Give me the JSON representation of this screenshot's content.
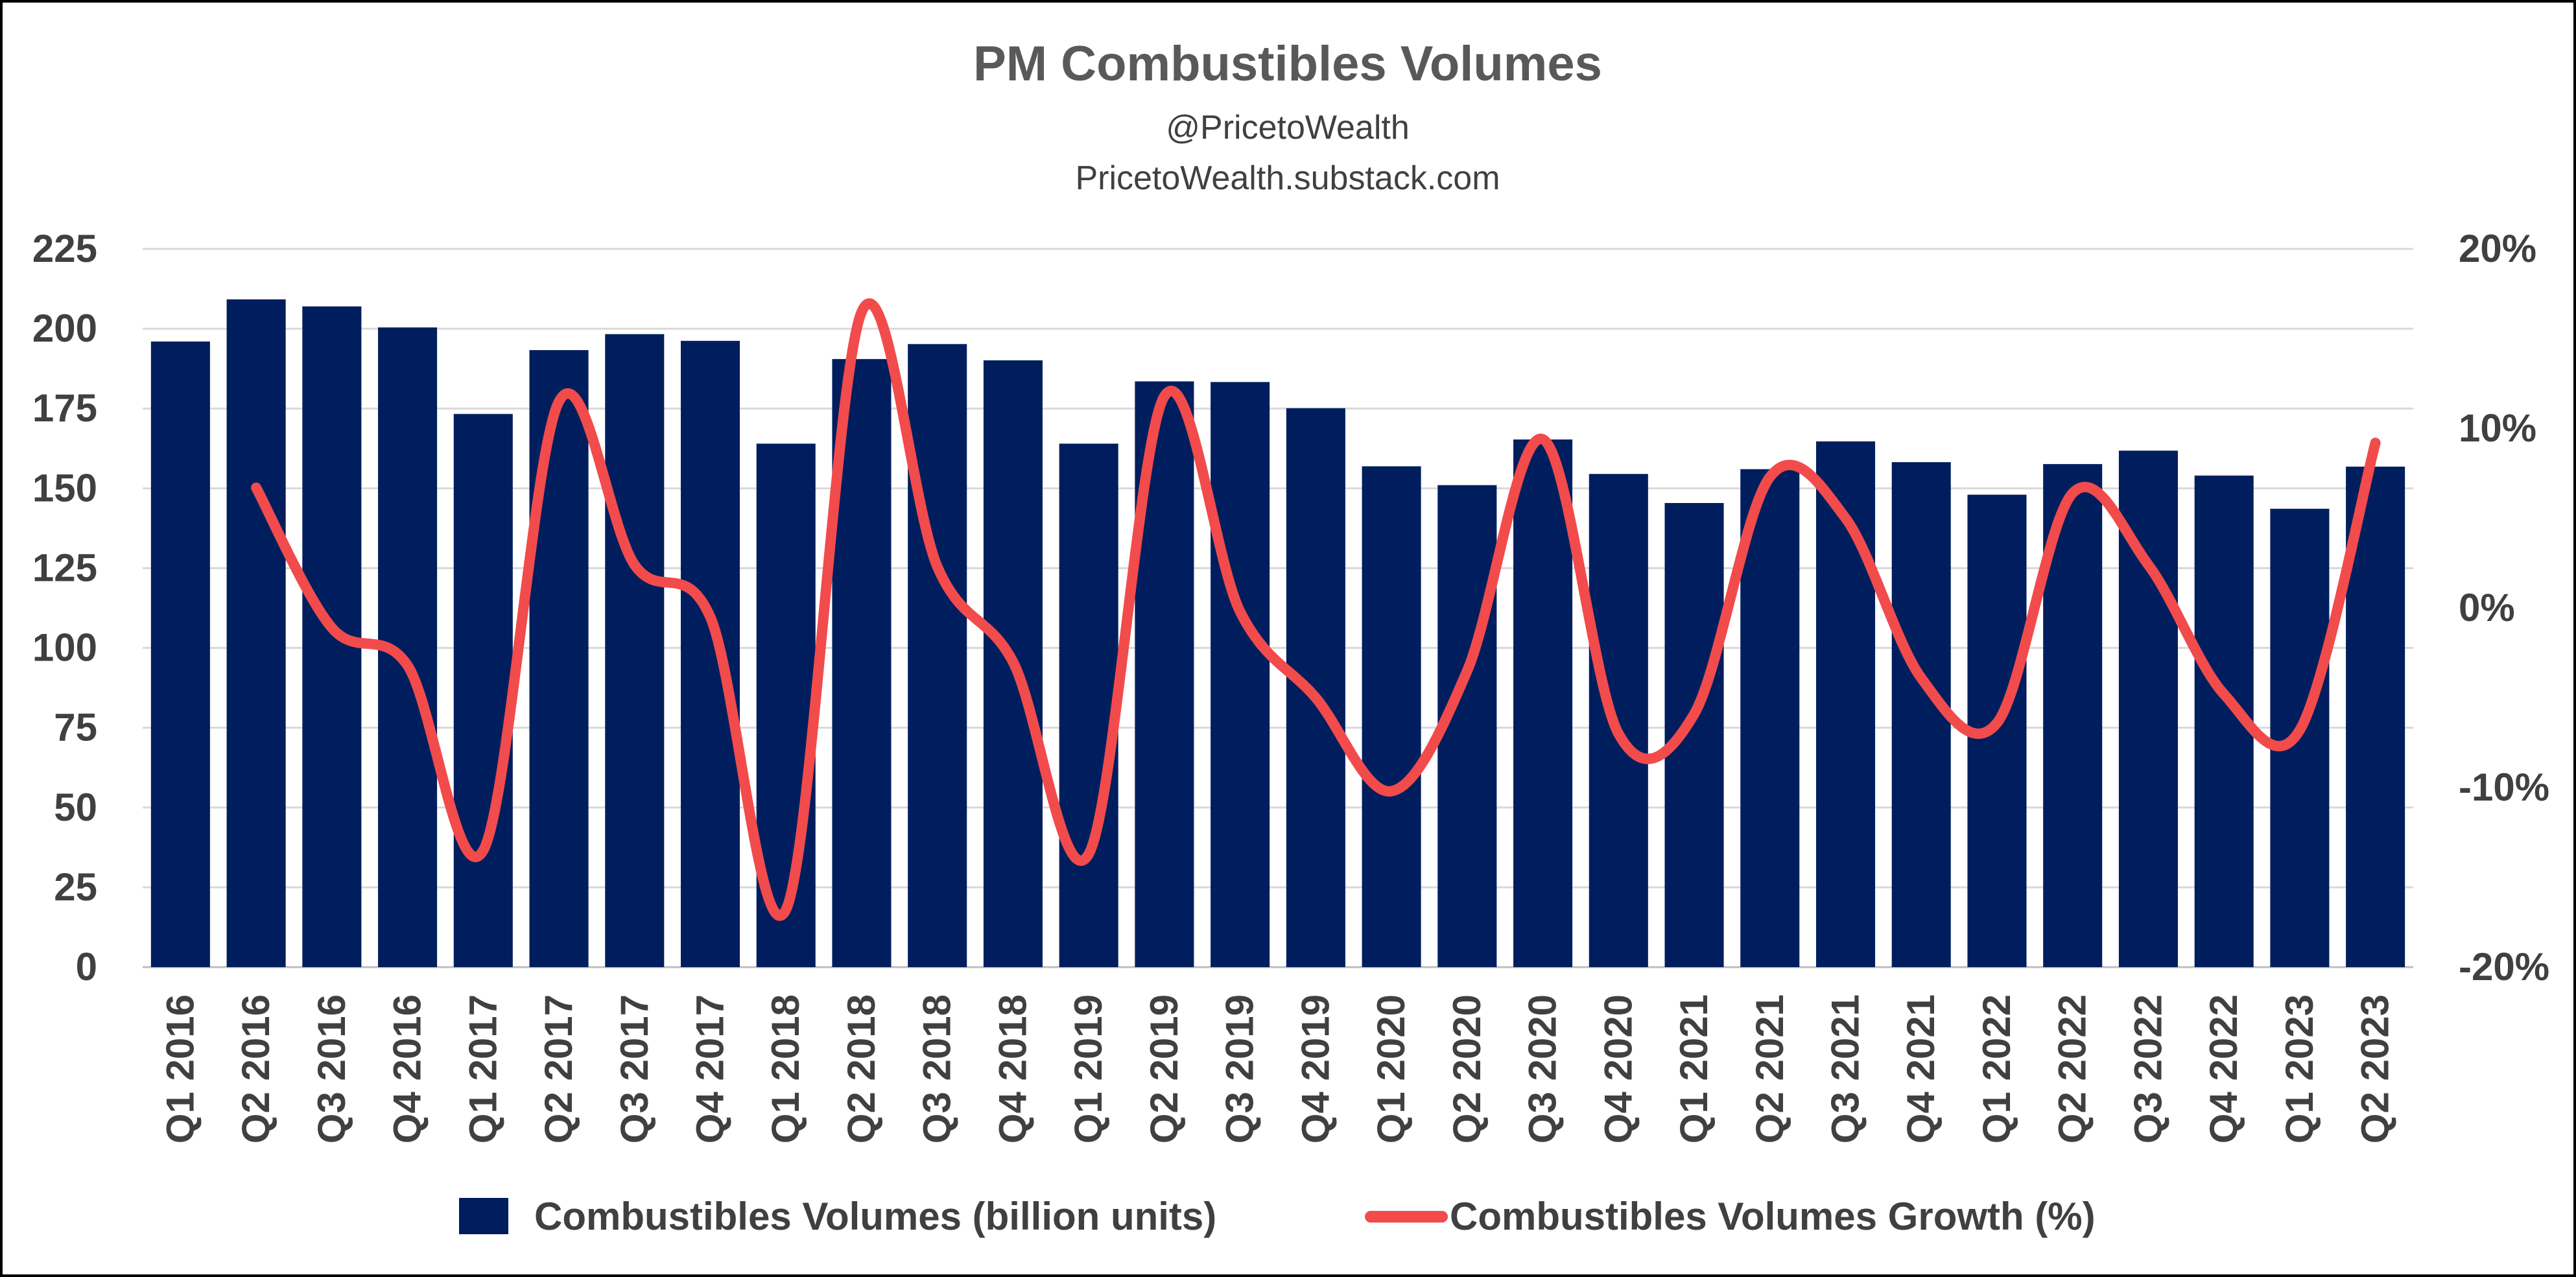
{
  "chart_data": {
    "type": "bar",
    "title": "PM Combustibles Volumes",
    "subtitles": [
      "@PricetoWealth",
      "PricetoWealth.substack.com"
    ],
    "categories": [
      "Q1 2016",
      "Q2 2016",
      "Q3 2016",
      "Q4 2016",
      "Q1 2017",
      "Q2 2017",
      "Q3 2017",
      "Q4 2017",
      "Q1 2018",
      "Q2 2018",
      "Q3 2018",
      "Q4 2018",
      "Q1 2019",
      "Q2 2019",
      "Q3 2019",
      "Q4 2019",
      "Q1 2020",
      "Q2 2020",
      "Q3 2020",
      "Q4 2020",
      "Q1 2021",
      "Q2 2021",
      "Q3 2021",
      "Q4 2021",
      "Q1 2022",
      "Q2 2022",
      "Q3 2022",
      "Q4 2022",
      "Q1 2023",
      "Q2 2023"
    ],
    "series": [
      {
        "name": "Combustibles Volumes (billion units)",
        "type": "bar",
        "axis": "left",
        "color": "#001E5E",
        "values": [
          196.0,
          209.2,
          207.0,
          200.4,
          173.3,
          193.3,
          198.3,
          196.2,
          164.0,
          190.5,
          195.2,
          190.1,
          164.0,
          183.5,
          183.3,
          175.1,
          156.9,
          151.0,
          165.3,
          154.5,
          145.4,
          156.0,
          164.7,
          158.2,
          148.0,
          157.6,
          161.8,
          154.0,
          143.6,
          156.8
        ]
      },
      {
        "name": "Combustibles Volumes Growth (%)",
        "type": "line",
        "axis": "right",
        "color": "#F24B4B",
        "values": [
          null,
          6.7,
          -1.1,
          -3.2,
          -13.5,
          11.5,
          2.4,
          -0.5,
          -16.8,
          16.5,
          2.3,
          -3.0,
          -13.7,
          11.8,
          -0.2,
          -5.0,
          -10.2,
          -3.5,
          9.4,
          -7.0,
          -5.9,
          7.3,
          5.0,
          -3.9,
          -6.4,
          6.4,
          2.4,
          -4.8,
          -6.8,
          9.2
        ]
      }
    ],
    "y_left": {
      "min": 0,
      "max": 225,
      "step": 25,
      "ticks": [
        "0",
        "25",
        "50",
        "75",
        "100",
        "125",
        "150",
        "175",
        "200",
        "225"
      ]
    },
    "y_right": {
      "min": -20,
      "max": 20,
      "step": 10,
      "ticks": [
        "-20%",
        "-10%",
        "0%",
        "10%",
        "20%"
      ]
    },
    "grid": true,
    "legend": {
      "position": "bottom",
      "items": [
        "Combustibles Volumes (billion units)",
        "Combustibles Volumes Growth (%)"
      ]
    }
  }
}
